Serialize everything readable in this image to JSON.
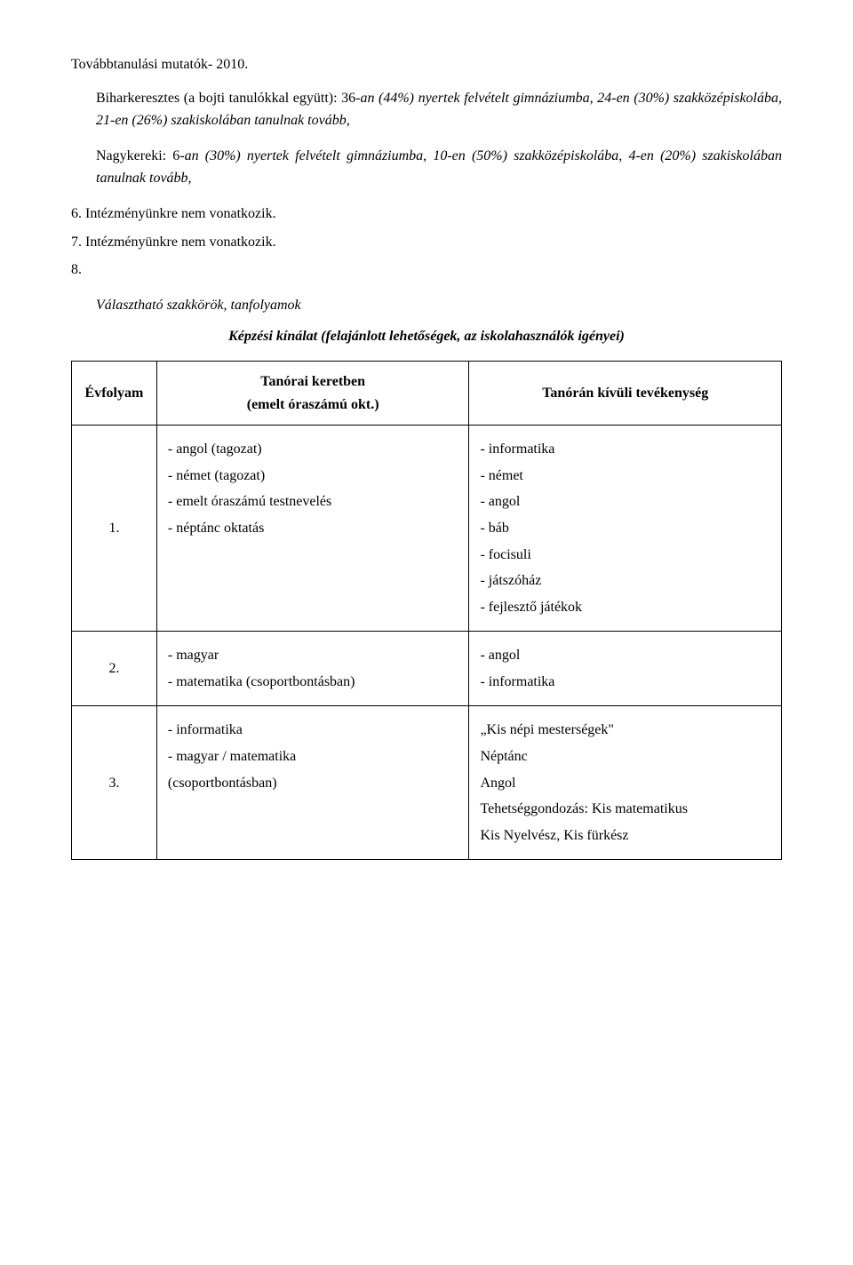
{
  "heading": "Továbbtanulási mutatók- 2010.",
  "paragraphs": {
    "p1_a": "Biharkeresztes (a bojti tanulókkal együtt): 36",
    "p1_b": "-an (44%) nyertek felvételt gimnáziumba, 24-en (30%) szakközépiskolába, 21-en (26%) szakiskolában tanulnak tovább,",
    "p2_a": "Nagykereki: 6",
    "p2_b": "-an (30%) nyertek felvételt gimnáziumba, 10-en (50%) szakközépiskolába, 4-en (20%) szakiskolában tanulnak tovább,"
  },
  "numbered": {
    "n6": "6. Intézményünkre nem vonatkozik.",
    "n7": "7. Intézményünkre nem vonatkozik.",
    "n8": "8."
  },
  "section_title": "Választható szakkörök, tanfolyamok",
  "table_caption": "Képzési kínálat (felajánlott lehetőségek, az iskolahasználók igényei)",
  "table": {
    "header": {
      "col1": "Évfolyam",
      "col2_line1": "Tanórai keretben",
      "col2_line2": "(emelt óraszámú okt.)",
      "col3": "Tanórán kívüli tevékenység"
    },
    "rows": [
      {
        "num": "1.",
        "left": [
          "- angol (tagozat)",
          "- német (tagozat)",
          "- emelt óraszámú testnevelés",
          "- néptánc oktatás"
        ],
        "right": [
          "- informatika",
          "- német",
          "- angol",
          "- báb",
          "- focisuli",
          "- játszóház",
          "- fejlesztő játékok"
        ]
      },
      {
        "num": "2.",
        "left": [
          "- magyar",
          "- matematika (csoportbontásban)"
        ],
        "right": [
          "- angol",
          "- informatika"
        ]
      },
      {
        "num": "3.",
        "left": [
          "- informatika",
          "- magyar / matematika",
          "(csoportbontásban)"
        ],
        "right": [
          "„Kis népi mesterségek\"",
          "Néptánc",
          "Angol",
          "Tehetséggondozás: Kis matematikus",
          "Kis Nyelvész, Kis fürkész"
        ]
      }
    ]
  }
}
